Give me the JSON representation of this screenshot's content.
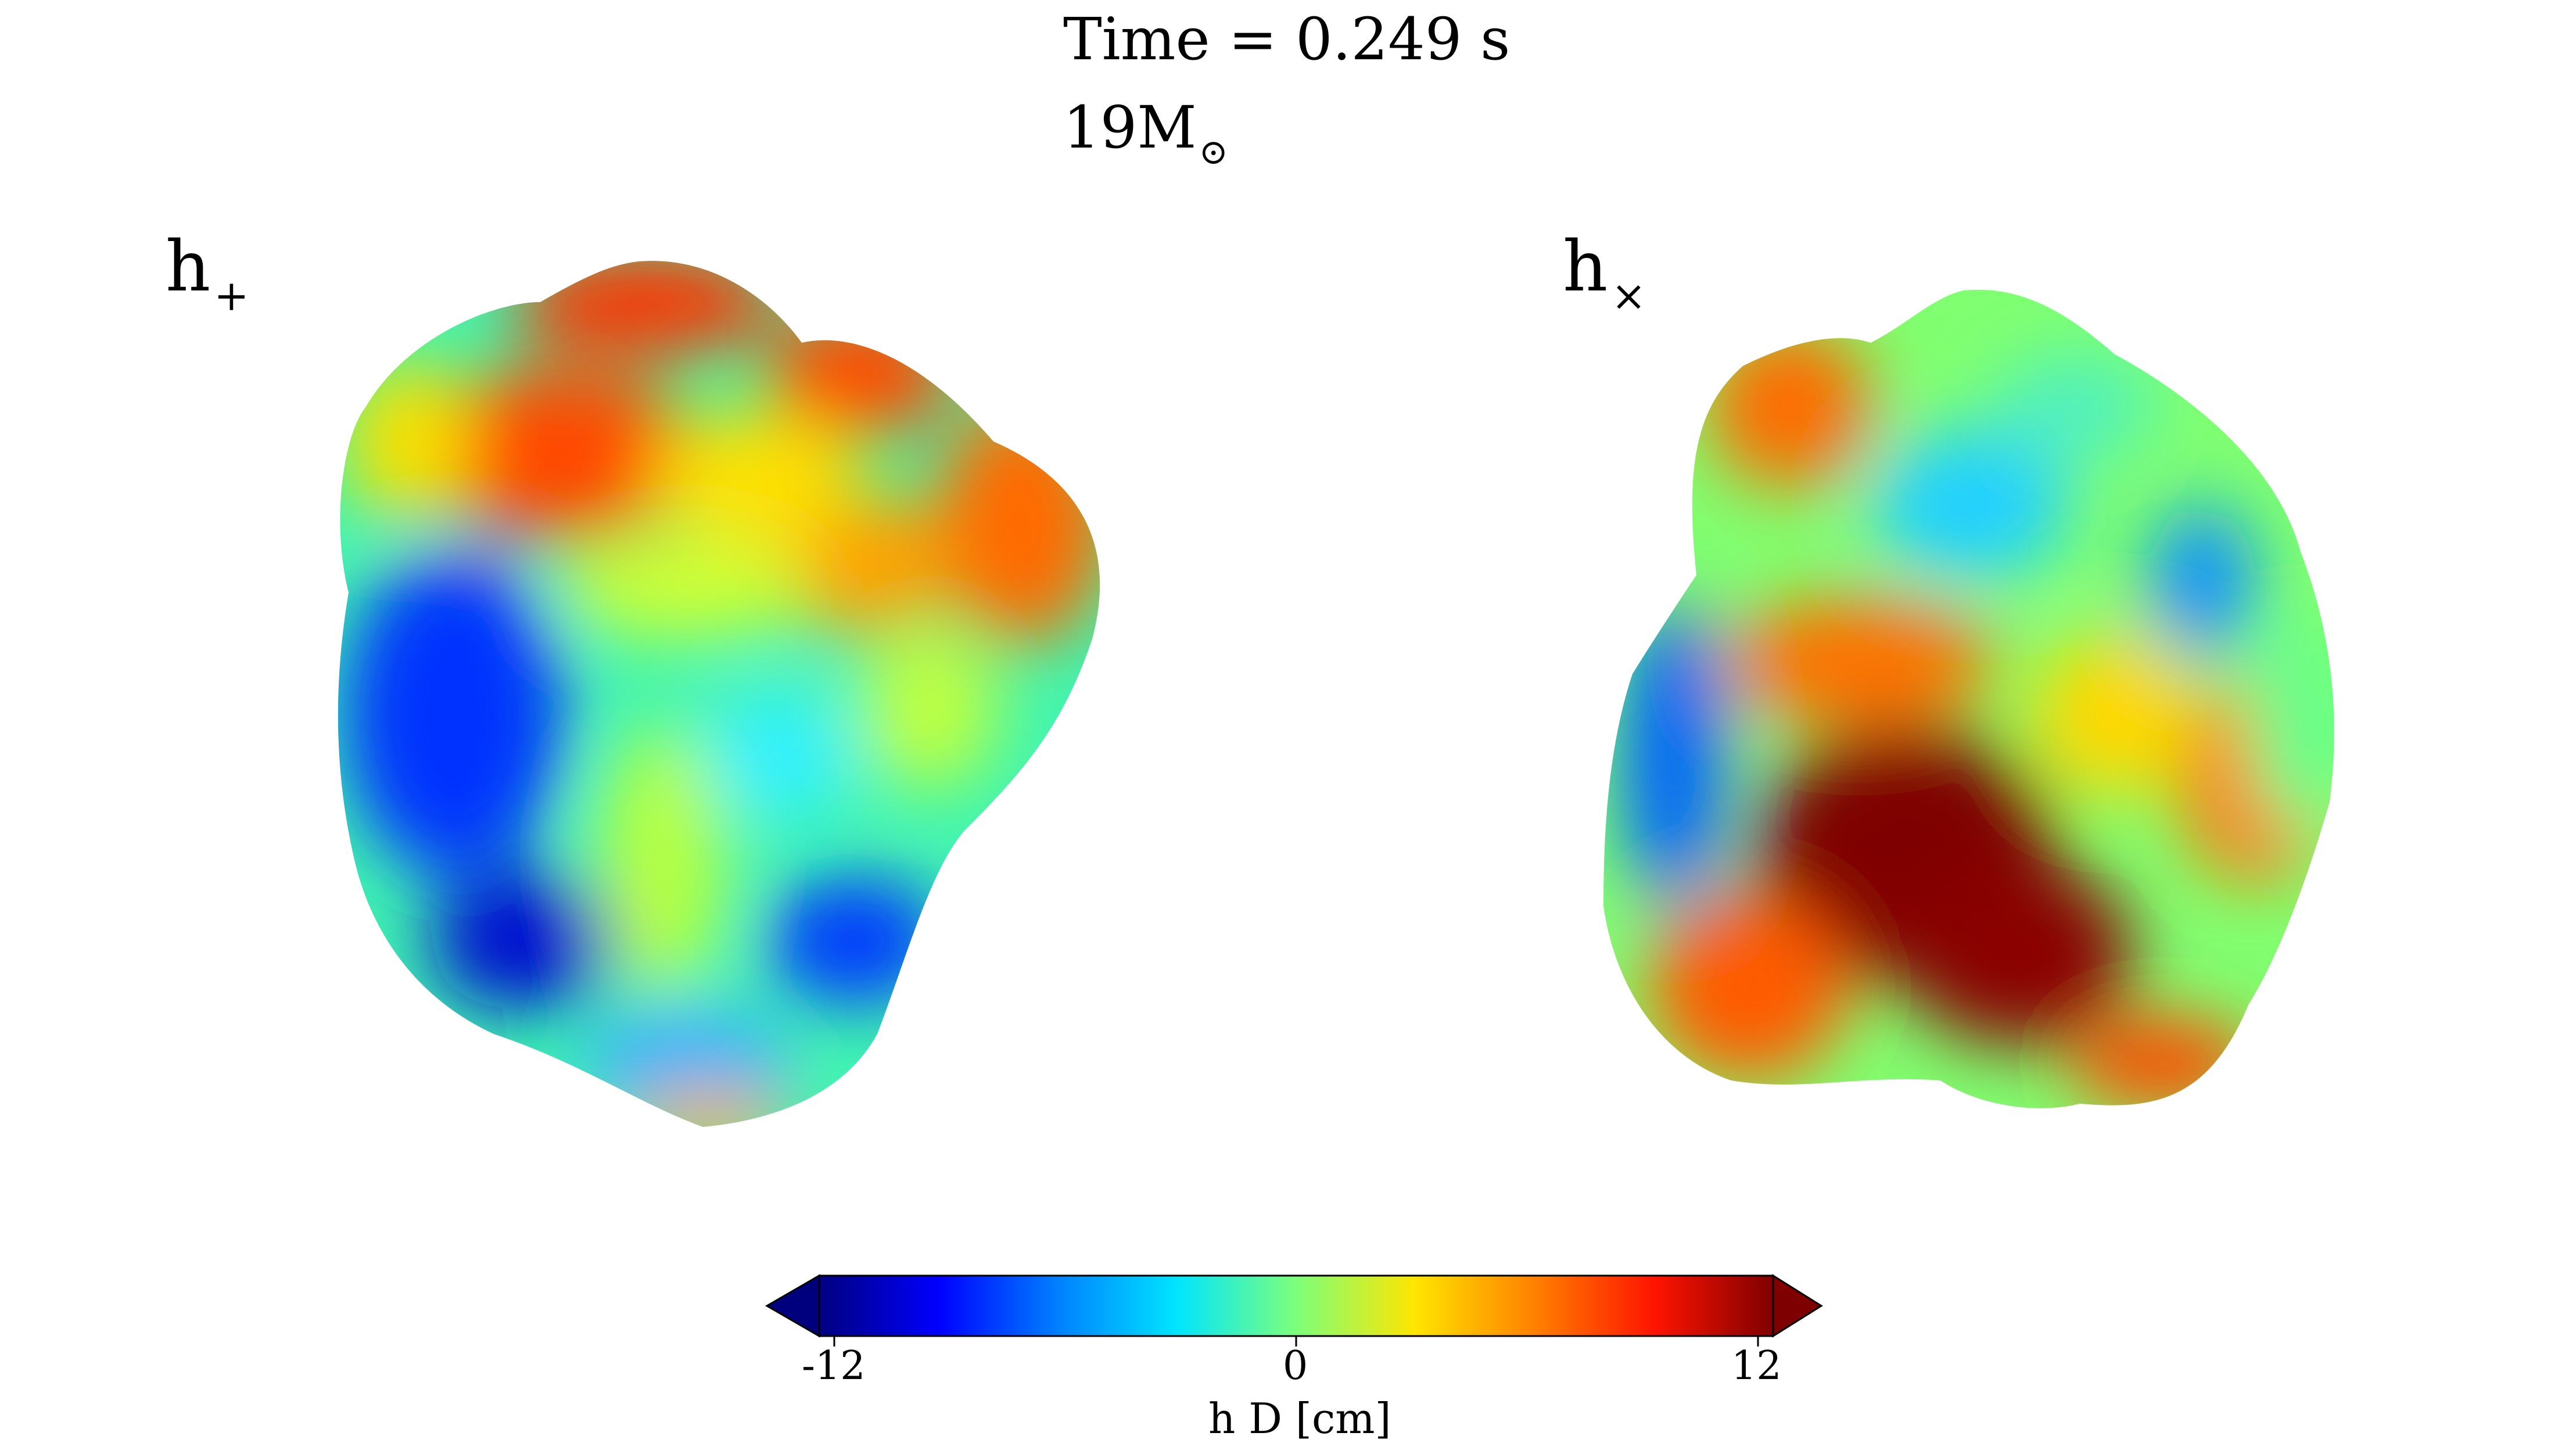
{
  "header": {
    "time_label": "Time = 0.249 s",
    "mass_value": "19M",
    "mass_symbol": "⊙"
  },
  "panels": [
    {
      "main": "h",
      "sub": "+"
    },
    {
      "main": "h",
      "sub": "×"
    }
  ],
  "colorbar": {
    "colormap": [
      "#00007f",
      "#0000ff",
      "#0080ff",
      "#00e5ff",
      "#7dff7a",
      "#ffe500",
      "#ff8000",
      "#ff1400",
      "#7f0000"
    ],
    "min": -12,
    "max": 12,
    "ticks": [
      "-12",
      "0",
      "12"
    ],
    "label": "h D [cm]",
    "extend": "both"
  }
}
